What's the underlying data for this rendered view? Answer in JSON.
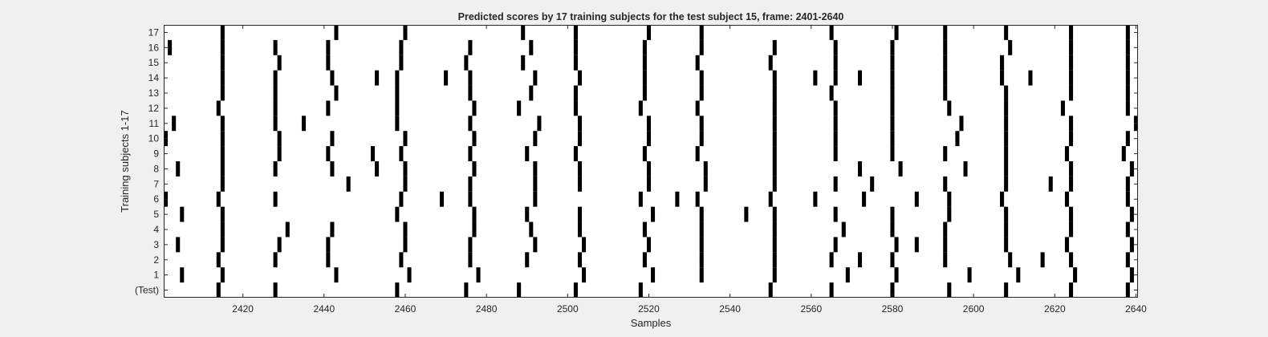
{
  "chart_data": {
    "type": "heatmap",
    "title": "Predicted scores by 17 training subjects for the test subject 15, frame: 2401-2640",
    "xlabel": "Samples",
    "ylabel": "Training subjects 1-17",
    "xlim": [
      2401,
      2640
    ],
    "x_ticks": [
      2420,
      2440,
      2460,
      2480,
      2500,
      2520,
      2540,
      2560,
      2580,
      2600,
      2620,
      2640
    ],
    "rows": [
      "(Test)",
      "1",
      "2",
      "3",
      "4",
      "5",
      "6",
      "7",
      "8",
      "9",
      "10",
      "11",
      "12",
      "13",
      "14",
      "15",
      "16",
      "17"
    ],
    "mark_color": "#000000",
    "background_color": "#ffffff",
    "grid": false,
    "marks": [
      {
        "row": "(Test)",
        "x": [
          2414,
          2428,
          2458,
          2475,
          2488,
          2502,
          2518,
          2550,
          2565,
          2580,
          2594,
          2608,
          2624,
          2638
        ]
      },
      {
        "row": "1",
        "x": [
          2405,
          2415,
          2443,
          2461,
          2478,
          2504,
          2521,
          2533,
          2551,
          2569,
          2581,
          2599,
          2611,
          2625,
          2639
        ]
      },
      {
        "row": "2",
        "x": [
          2414,
          2428,
          2441,
          2459,
          2476,
          2490,
          2503,
          2519,
          2533,
          2551,
          2565,
          2572,
          2580,
          2593,
          2609,
          2617,
          2624,
          2638
        ]
      },
      {
        "row": "3",
        "x": [
          2404,
          2415,
          2429,
          2441,
          2460,
          2476,
          2492,
          2504,
          2520,
          2533,
          2551,
          2566,
          2581,
          2586,
          2593,
          2608,
          2623,
          2639
        ]
      },
      {
        "row": "4",
        "x": [
          2415,
          2431,
          2442,
          2460,
          2477,
          2491,
          2503,
          2519,
          2533,
          2551,
          2568,
          2580,
          2593,
          2608,
          2624,
          2638
        ]
      },
      {
        "row": "5",
        "x": [
          2405,
          2415,
          2458,
          2477,
          2490,
          2503,
          2521,
          2533,
          2544,
          2551,
          2566,
          2580,
          2594,
          2608,
          2624,
          2639
        ]
      },
      {
        "row": "6",
        "x": [
          2401,
          2414,
          2428,
          2459,
          2469,
          2476,
          2492,
          2518,
          2527,
          2532,
          2550,
          2561,
          2573,
          2586,
          2594,
          2607,
          2623,
          2638
        ]
      },
      {
        "row": "7",
        "x": [
          2415,
          2446,
          2460,
          2476,
          2492,
          2503,
          2520,
          2534,
          2551,
          2566,
          2575,
          2593,
          2608,
          2619,
          2624,
          2638
        ]
      },
      {
        "row": "8",
        "x": [
          2404,
          2415,
          2428,
          2442,
          2453,
          2460,
          2477,
          2492,
          2503,
          2520,
          2534,
          2551,
          2572,
          2582,
          2598,
          2608,
          2624,
          2639
        ]
      },
      {
        "row": "9",
        "x": [
          2415,
          2429,
          2441,
          2452,
          2459,
          2476,
          2490,
          2502,
          2519,
          2532,
          2551,
          2566,
          2580,
          2593,
          2608,
          2623,
          2637
        ]
      },
      {
        "row": "10",
        "x": [
          2401,
          2415,
          2429,
          2442,
          2460,
          2477,
          2492,
          2503,
          2520,
          2533,
          2551,
          2566,
          2580,
          2596,
          2608,
          2624,
          2638
        ]
      },
      {
        "row": "11",
        "x": [
          2403,
          2415,
          2428,
          2435,
          2458,
          2476,
          2493,
          2503,
          2520,
          2533,
          2551,
          2566,
          2580,
          2597,
          2608,
          2624,
          2640
        ]
      },
      {
        "row": "12",
        "x": [
          2414,
          2428,
          2441,
          2458,
          2477,
          2488,
          2502,
          2518,
          2532,
          2551,
          2566,
          2580,
          2594,
          2608,
          2622,
          2638
        ]
      },
      {
        "row": "13",
        "x": [
          2415,
          2428,
          2443,
          2458,
          2476,
          2491,
          2502,
          2519,
          2533,
          2551,
          2565,
          2580,
          2593,
          2608,
          2624,
          2638
        ]
      },
      {
        "row": "14",
        "x": [
          2415,
          2428,
          2442,
          2453,
          2458,
          2470,
          2476,
          2492,
          2503,
          2519,
          2533,
          2551,
          2561,
          2566,
          2572,
          2580,
          2593,
          2607,
          2614,
          2624,
          2638
        ]
      },
      {
        "row": "15",
        "x": [
          2415,
          2429,
          2441,
          2459,
          2475,
          2489,
          2502,
          2519,
          2532,
          2550,
          2566,
          2580,
          2593,
          2607,
          2624,
          2638
        ]
      },
      {
        "row": "16",
        "x": [
          2402,
          2415,
          2428,
          2441,
          2459,
          2476,
          2491,
          2502,
          2519,
          2533,
          2551,
          2566,
          2580,
          2593,
          2609,
          2624,
          2638
        ]
      },
      {
        "row": "17",
        "x": [
          2415,
          2443,
          2460,
          2489,
          2502,
          2520,
          2533,
          2565,
          2581,
          2593,
          2608,
          2624,
          2638
        ]
      }
    ]
  }
}
